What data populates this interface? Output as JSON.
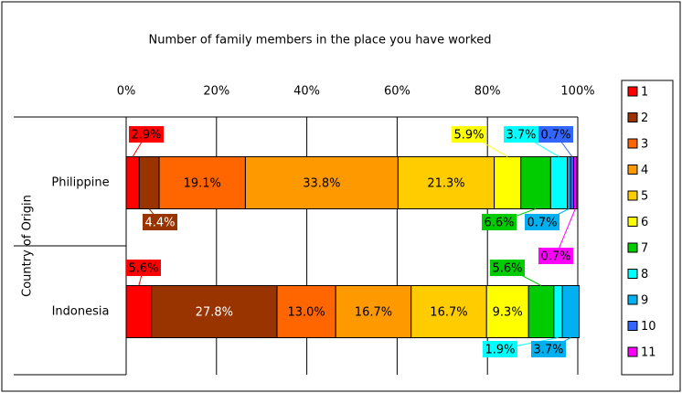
{
  "chart_data": {
    "type": "stacked-bar-horizontal",
    "title": "Number of family members in the place you have worked",
    "y_axis_label": "Country of Origin",
    "categories": [
      "Philippine",
      "Indonesia"
    ],
    "xlim": [
      0,
      100
    ],
    "xticks": [
      {
        "value": 0,
        "label": "0%"
      },
      {
        "value": 20,
        "label": "20%"
      },
      {
        "value": 40,
        "label": "40%"
      },
      {
        "value": 60,
        "label": "60%"
      },
      {
        "value": 80,
        "label": "80%"
      },
      {
        "value": 100,
        "label": "100%"
      }
    ],
    "grid": true,
    "legend": "right",
    "series": [
      {
        "name": "1",
        "color": "#ff0000",
        "values": [
          2.9,
          5.6
        ],
        "value_labels": [
          "2.9%",
          "5.6%"
        ]
      },
      {
        "name": "2",
        "color": "#993300",
        "values": [
          4.4,
          27.8
        ],
        "value_labels": [
          "4.4%",
          "27.8%"
        ]
      },
      {
        "name": "3",
        "color": "#ff6600",
        "values": [
          19.1,
          13.0
        ],
        "value_labels": [
          "19.1%",
          "13.0%"
        ]
      },
      {
        "name": "4",
        "color": "#ff9900",
        "values": [
          33.8,
          16.7
        ],
        "value_labels": [
          "33.8%",
          "16.7%"
        ]
      },
      {
        "name": "5",
        "color": "#ffcc00",
        "values": [
          21.3,
          16.7
        ],
        "value_labels": [
          "21.3%",
          "16.7%"
        ]
      },
      {
        "name": "6",
        "color": "#ffff00",
        "values": [
          5.9,
          9.3
        ],
        "value_labels": [
          "5.9%",
          "9.3%"
        ]
      },
      {
        "name": "7",
        "color": "#00cc00",
        "values": [
          6.6,
          5.6
        ],
        "value_labels": [
          "6.6%",
          "5.6%"
        ]
      },
      {
        "name": "8",
        "color": "#00ffff",
        "values": [
          3.7,
          1.9
        ],
        "value_labels": [
          "3.7%",
          "1.9%"
        ]
      },
      {
        "name": "9",
        "color": "#00b0f0",
        "values": [
          0.7,
          3.7
        ],
        "value_labels": [
          "0.7%",
          "3.7%"
        ]
      },
      {
        "name": "10",
        "color": "#3366ff",
        "values": [
          0.7,
          null
        ],
        "value_labels": [
          "0.7%",
          null
        ]
      },
      {
        "name": "11",
        "color": "#ff00ff",
        "values": [
          0.7,
          null
        ],
        "value_labels": [
          "0.7%",
          null
        ]
      }
    ]
  }
}
